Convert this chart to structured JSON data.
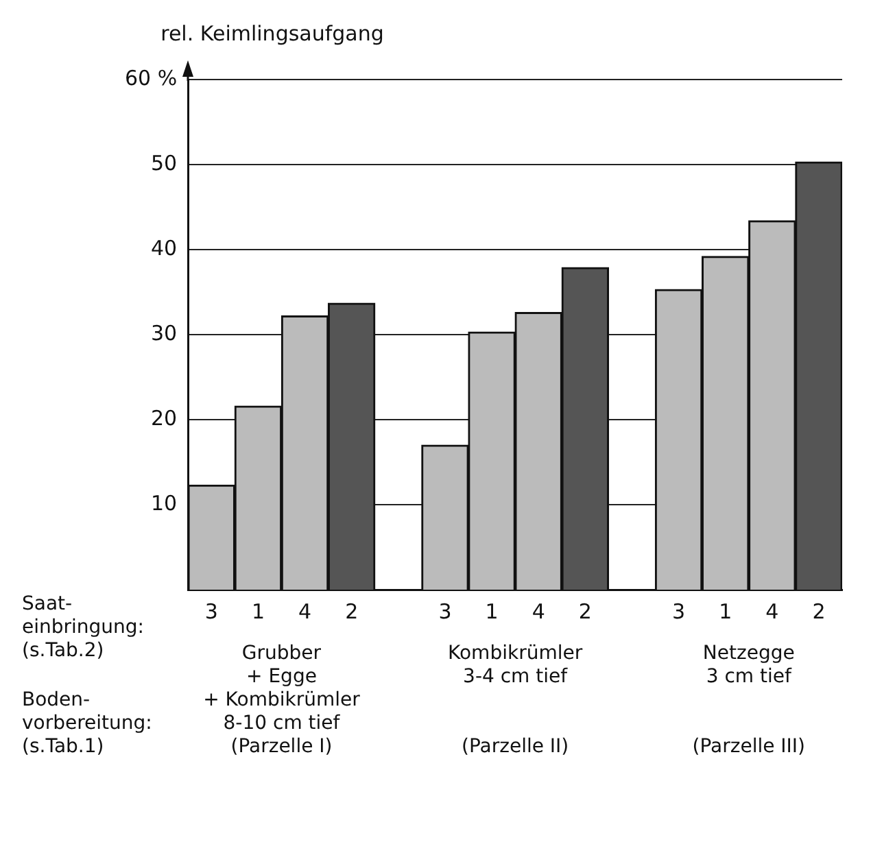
{
  "chart_data": {
    "type": "bar",
    "ylabel": "rel. Keimlingsaufgang",
    "categories": [
      "3",
      "1",
      "4",
      "2",
      null,
      "3",
      "1",
      "4",
      "2",
      null,
      "3",
      "1",
      "4",
      "2"
    ],
    "values": [
      12.3,
      21.6,
      32.2,
      33.7,
      null,
      17.0,
      30.3,
      32.6,
      37.9,
      null,
      35.3,
      39.2,
      43.4,
      50.3
    ],
    "colors": [
      "#bbbbbb",
      "#bbbbbb",
      "#bbbbbb",
      "#555555",
      null,
      "#bbbbbb",
      "#bbbbbb",
      "#bbbbbb",
      "#555555",
      null,
      "#bbbbbb",
      "#bbbbbb",
      "#bbbbbb",
      "#555555"
    ],
    "ylim": [
      0,
      60
    ],
    "yticks": [
      10,
      20,
      30,
      40,
      50,
      {
        "value": 60,
        "label": "60 %"
      }
    ],
    "grid": "y",
    "annotations": [
      "Saat-\neinbringung:\n(s.Tab.2)",
      "Boden-\nvorbereitung:\n(s.Tab.1)",
      "Grubber\n+ Egge\n+ Kombikrümler\n8-10 cm tief\n(Parzelle I)",
      "Kombikrümler\n3-4 cm tief\n\n\n(Parzelle II)",
      "Netzegge\n3 cm tief\n\n\n(Parzelle III)"
    ]
  }
}
